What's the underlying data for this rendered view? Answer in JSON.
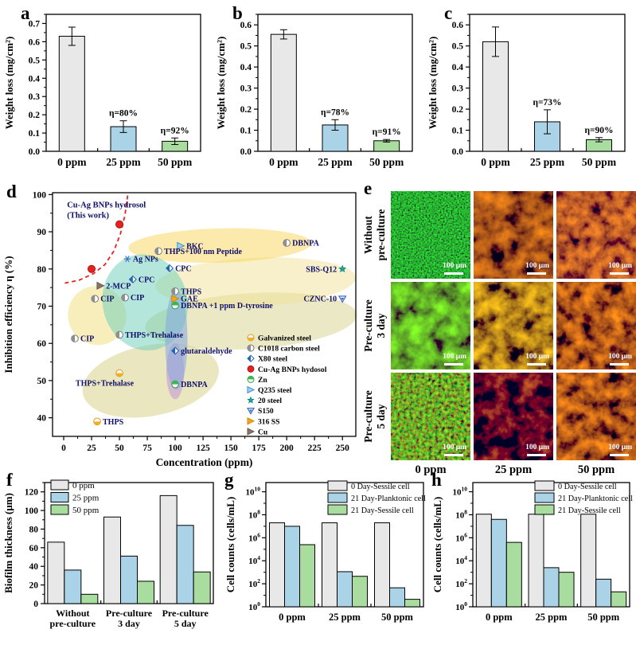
{
  "panels": {
    "a": {
      "letter": "a"
    },
    "b": {
      "letter": "b"
    },
    "c": {
      "letter": "c"
    },
    "d": {
      "letter": "d"
    },
    "e": {
      "letter": "e"
    },
    "f": {
      "letter": "f"
    },
    "g": {
      "letter": "g"
    },
    "h": {
      "letter": "h"
    }
  },
  "colors": {
    "bar_gray": "#e8e8e8",
    "bar_blue": "#abd3e8",
    "bar_green": "#a9dc9f",
    "accent_red": "#e8211d",
    "label_navy": "#10106a"
  },
  "chart_data": [
    {
      "id": "a",
      "type": "bar",
      "ylabel": "Weight loss (mg/cm²)",
      "categories": [
        "0 ppm",
        "25 ppm",
        "50 ppm"
      ],
      "values": [
        0.63,
        0.135,
        0.055
      ],
      "errors": [
        0.05,
        0.032,
        0.018
      ],
      "annotations": [
        "",
        "η=80%",
        "η=92%"
      ],
      "ylim": [
        0,
        0.75
      ],
      "yticks": [
        0.0,
        0.1,
        0.2,
        0.3,
        0.4,
        0.5,
        0.6,
        0.7
      ],
      "ytick_decimals": 1
    },
    {
      "id": "b",
      "type": "bar",
      "ylabel": "Weight loss (mg/cm²)",
      "categories": [
        "0 ppm",
        "25 ppm",
        "50 ppm"
      ],
      "values": [
        0.555,
        0.125,
        0.05
      ],
      "errors": [
        0.022,
        0.025,
        0.006
      ],
      "annotations": [
        "",
        "η=78%",
        "η=91%"
      ],
      "ylim": [
        0,
        0.65
      ],
      "yticks": [
        0.0,
        0.1,
        0.2,
        0.3,
        0.4,
        0.5,
        0.6
      ],
      "ytick_decimals": 1
    },
    {
      "id": "c",
      "type": "bar",
      "ylabel": "Weight loss (mg/cm²)",
      "categories": [
        "0 ppm",
        "25 ppm",
        "50 ppm"
      ],
      "values": [
        0.52,
        0.14,
        0.055
      ],
      "errors": [
        0.07,
        0.057,
        0.01
      ],
      "annotations": [
        "",
        "η=73%",
        "η=90%"
      ],
      "ylim": [
        0,
        0.65
      ],
      "yticks": [
        0.0,
        0.1,
        0.2,
        0.3,
        0.4,
        0.5,
        0.6
      ],
      "ytick_decimals": 1
    },
    {
      "id": "d",
      "type": "scatter",
      "xlabel": "Concentration (ppm)",
      "ylabel": "Inhibition efficiency η (%)",
      "xlim": [
        -10,
        262
      ],
      "ylim": [
        35,
        100.5
      ],
      "xticks": [
        0,
        25,
        50,
        75,
        100,
        125,
        150,
        175,
        200,
        225,
        250
      ],
      "yticks": [
        40,
        50,
        60,
        70,
        80,
        90,
        100
      ],
      "annotation": {
        "lines": [
          "Cu-Ag BNPs hydrosol",
          "(This work)"
        ],
        "x": 3,
        "y": 96.5
      },
      "highlight_points": [
        {
          "x": 25,
          "y": 80,
          "marker": "cuag"
        },
        {
          "x": 50,
          "y": 92,
          "marker": "cuag"
        }
      ],
      "curve": {
        "color": "#e8211d",
        "points": [
          [
            1,
            76.2
          ],
          [
            14,
            77.0
          ],
          [
            27,
            78.8
          ],
          [
            37,
            81.2
          ],
          [
            45,
            84.8
          ],
          [
            51,
            89.5
          ],
          [
            55,
            94.5
          ],
          [
            57.5,
            100
          ]
        ]
      },
      "points": [
        {
          "x": 33,
          "y": 75.5,
          "marker": "cu",
          "label": "2-MCP",
          "lp": "r"
        },
        {
          "x": 57,
          "y": 82.7,
          "marker": "agnps",
          "label": "Ag NPs",
          "lp": "r"
        },
        {
          "x": 62,
          "y": 77.2,
          "marker": "x80",
          "label": "CPC",
          "lp": "r"
        },
        {
          "x": 95,
          "y": 80.2,
          "marker": "x80",
          "label": "CPC",
          "lp": "r"
        },
        {
          "x": 105,
          "y": 86.2,
          "marker": "q235",
          "label": "BKC",
          "lp": "r"
        },
        {
          "x": 85,
          "y": 84.8,
          "marker": "c1018",
          "label": "THPS+100 nm Peptide",
          "lp": "r"
        },
        {
          "x": 200,
          "y": 87.0,
          "marker": "c1018",
          "label": "DBNPA",
          "lp": "r"
        },
        {
          "x": 250,
          "y": 80.0,
          "marker": "20steel",
          "label": "SBS-Q12",
          "lp": "l"
        },
        {
          "x": 250,
          "y": 72.0,
          "marker": "s150",
          "label": "CZNC-10",
          "lp": "l"
        },
        {
          "x": 100,
          "y": 74.0,
          "marker": "c1018",
          "label": "THPS",
          "lp": "r"
        },
        {
          "x": 100,
          "y": 72.0,
          "marker": "316ss",
          "label": "GAE",
          "lp": "r"
        },
        {
          "x": 100,
          "y": 70.2,
          "marker": "zn",
          "label": "DBNPA +1 ppm D-tyrosine",
          "lp": "r"
        },
        {
          "x": 28,
          "y": 72.0,
          "marker": "c1018",
          "label": "CIP",
          "lp": "r"
        },
        {
          "x": 55,
          "y": 72.3,
          "marker": "c1018",
          "label": "CIP",
          "lp": "r"
        },
        {
          "x": 10,
          "y": 61.3,
          "marker": "c1018",
          "label": "CIP",
          "lp": "r"
        },
        {
          "x": 50,
          "y": 62.3,
          "marker": "c1018",
          "label": "THPS+Trehalase",
          "lp": "r"
        },
        {
          "x": 100,
          "y": 58.0,
          "marker": "x80",
          "label": "glutaraldehyde",
          "lp": "r"
        },
        {
          "x": 50,
          "y": 52.0,
          "marker": "galv",
          "label": "THPS+Trehalase",
          "lp": "bl"
        },
        {
          "x": 100,
          "y": 49.0,
          "marker": "zn",
          "label": "DBNPA",
          "lp": "r"
        },
        {
          "x": 30,
          "y": 39.0,
          "marker": "galv",
          "label": "THPS",
          "lp": "r"
        }
      ],
      "legend": [
        {
          "marker": "galv",
          "label": "Galvanized steel"
        },
        {
          "marker": "c1018",
          "label": "C1018 carbon steel"
        },
        {
          "marker": "x80",
          "label": "X80 steel"
        },
        {
          "marker": "cuag",
          "label": "Cu-Ag BNPs hydosol"
        },
        {
          "marker": "zn",
          "label": "Zn"
        },
        {
          "marker": "q235",
          "label": "Q235 steel"
        },
        {
          "marker": "20steel",
          "label": "20 steel"
        },
        {
          "marker": "s150",
          "label": "S150"
        },
        {
          "marker": "316ss",
          "label": "316 SS"
        },
        {
          "marker": "cu",
          "label": "Cu"
        }
      ],
      "regions": [
        {
          "cx": 168,
          "cy": 66.0,
          "rx": 95,
          "ry": 7.5,
          "rot": -3.5,
          "color": "rgba(215,210,140,0.50)"
        },
        {
          "cx": 78,
          "cy": 50.0,
          "rx": 62,
          "ry": 9.5,
          "rot": -11,
          "color": "rgba(214,208,130,0.50)"
        },
        {
          "cx": 172,
          "cy": 76.5,
          "rx": 90,
          "ry": 6.5,
          "rot": -2.5,
          "color": "rgba(240,225,150,0.50)"
        },
        {
          "cx": 140,
          "cy": 86.3,
          "rx": 82,
          "ry": 4.6,
          "rot": -1.5,
          "color": "rgba(247,214,90,0.50)"
        },
        {
          "cx": 30,
          "cy": 67.5,
          "rx": 26,
          "ry": 8.0,
          "rot": -28,
          "color": "rgba(240,222,120,0.50)"
        },
        {
          "cx": 73,
          "cy": 71.0,
          "rx": 38,
          "ry": 13.0,
          "rot": -14,
          "color": "rgba(105,205,185,0.50)"
        },
        {
          "cx": 100,
          "cy": 52.5,
          "rx": 8,
          "ry": 7.5,
          "rot": 0,
          "color": "rgba(190,140,215,0.50)"
        },
        {
          "cx": 101,
          "cy": 61.0,
          "rx": 10,
          "ry": 13.5,
          "rot": 0,
          "color": "rgba(130,165,225,0.55)"
        }
      ]
    },
    {
      "id": "e",
      "type": "image-grid",
      "col_labels": [
        "0 ppm",
        "25 ppm",
        "50 ppm"
      ],
      "rows": [
        {
          "label_lines": [
            "Without",
            "pre-culture"
          ],
          "cells": [
            {
              "texture": "green-dense",
              "scale_bar": "100 μm"
            },
            {
              "texture": "red-web",
              "scale_bar": "100 μm"
            },
            {
              "texture": "red-dense",
              "scale_bar": "100 μm"
            }
          ]
        },
        {
          "label_lines": [
            "Pre-culture",
            "3 day"
          ],
          "cells": [
            {
              "texture": "green-patch",
              "scale_bar": "100 μm"
            },
            {
              "texture": "orange-web",
              "scale_bar": "100 μm"
            },
            {
              "texture": "red-net",
              "scale_bar": "100 μm"
            }
          ]
        },
        {
          "label_lines": [
            "Pre-culture",
            "5 day"
          ],
          "cells": [
            {
              "texture": "green-speckle-red",
              "scale_bar": "100 μm"
            },
            {
              "texture": "red-sparse",
              "scale_bar": "100 μm"
            },
            {
              "texture": "red-net",
              "scale_bar": "100 μm"
            }
          ]
        }
      ]
    },
    {
      "id": "f",
      "type": "grouped-bar",
      "ylabel": "Biofilm thickness (μm)",
      "categories": [
        [
          "Without",
          "pre-culture"
        ],
        [
          "Pre-culture",
          "3 day"
        ],
        [
          "Pre-culture",
          "5 day"
        ]
      ],
      "series": [
        {
          "name": "0 ppm",
          "values": [
            66,
            93,
            116
          ]
        },
        {
          "name": "25 ppm",
          "values": [
            36,
            51,
            84
          ]
        },
        {
          "name": "50 ppm",
          "values": [
            10,
            24,
            34
          ]
        }
      ],
      "ylim": [
        0,
        130
      ],
      "yticks": [
        0,
        20,
        40,
        60,
        80,
        100,
        120
      ],
      "ytick_decimals": 0,
      "legend_position": "top-left"
    },
    {
      "id": "g",
      "type": "log-bar",
      "ylabel": "Cell counts (cells/mL)",
      "categories": [
        "0 ppm",
        "25 ppm",
        "50 ppm"
      ],
      "series": [
        {
          "name": "0 Day-Sessile cell",
          "log10_values": [
            7.3,
            7.3,
            7.3
          ]
        },
        {
          "name": "21 Day-Planktonic cell",
          "log10_values": [
            7.0,
            3.05,
            1.65
          ]
        },
        {
          "name": "21 Day-Sessile cell",
          "log10_values": [
            5.4,
            2.65,
            0.65
          ]
        }
      ],
      "ytick_exponents": [
        0,
        2,
        4,
        6,
        8,
        10
      ],
      "ylim_exponents": [
        0,
        10.8
      ],
      "legend_position": "top-right"
    },
    {
      "id": "h",
      "type": "log-bar",
      "ylabel": "Cell counts (cells/mL)",
      "categories": [
        "0 ppm",
        "25 ppm",
        "50 ppm"
      ],
      "series": [
        {
          "name": "0 Day-Sessile cell",
          "log10_values": [
            8.05,
            8.05,
            8.05
          ]
        },
        {
          "name": "21 Day-Planktonic cell",
          "log10_values": [
            7.6,
            3.4,
            2.4
          ]
        },
        {
          "name": "21 Day-Sessile cell",
          "log10_values": [
            5.6,
            3.0,
            1.3
          ]
        }
      ],
      "ytick_exponents": [
        0,
        2,
        4,
        6,
        8,
        10
      ],
      "ylim_exponents": [
        0,
        10.8
      ],
      "legend_position": "top-right"
    }
  ]
}
